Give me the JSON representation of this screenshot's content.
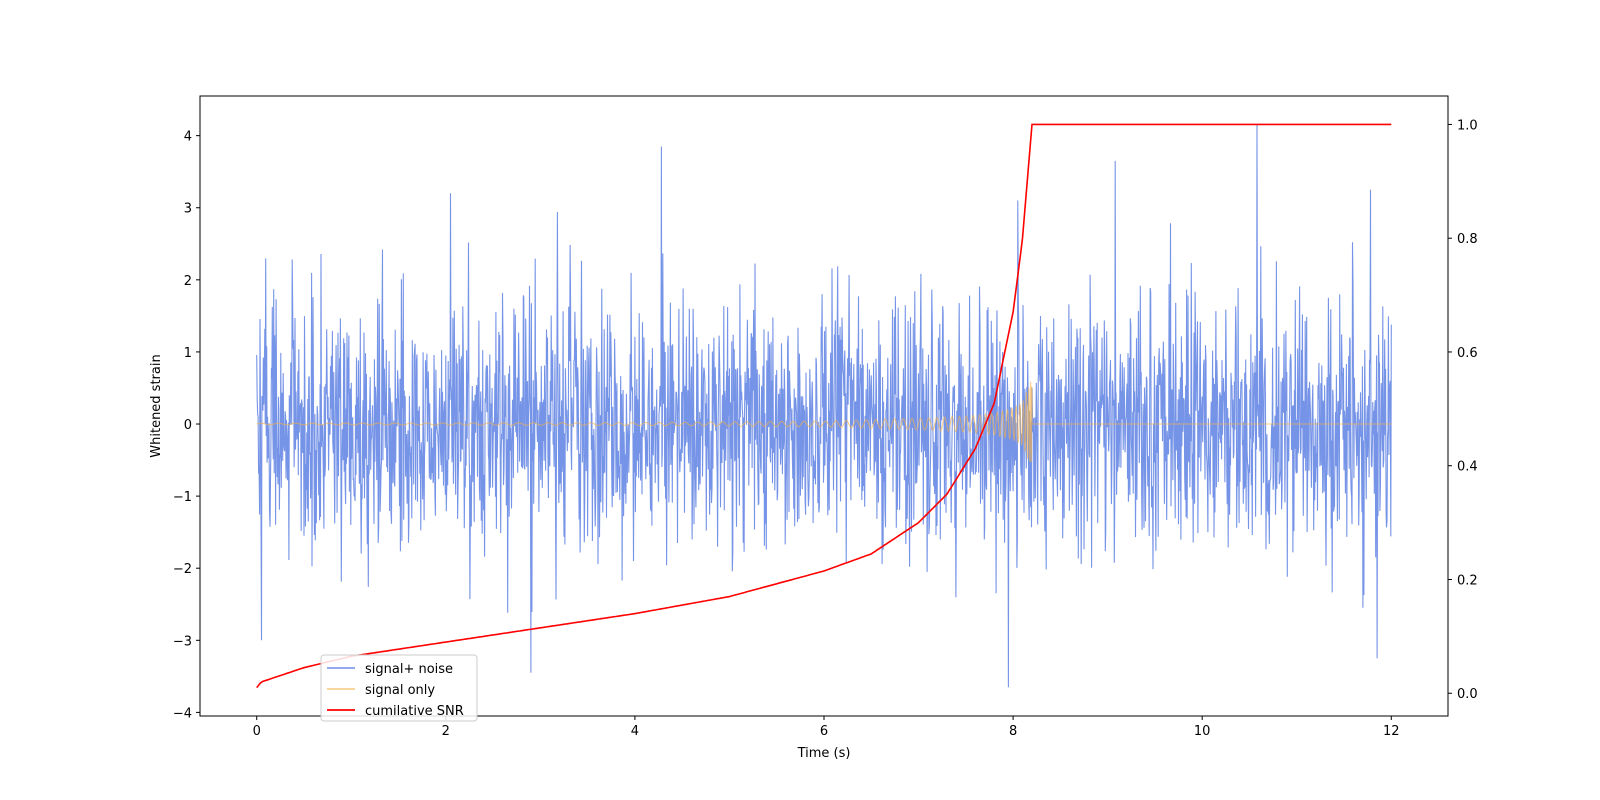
{
  "chart_data": {
    "type": "line",
    "title": "",
    "xlabel": "Time (s)",
    "ylabel": "Whitened strain",
    "y2label": "",
    "xlim": [
      -0.6,
      12.6
    ],
    "ylim": [
      -4.05,
      4.55
    ],
    "y2lim": [
      -0.04,
      1.05
    ],
    "x_ticks": [
      0,
      2,
      4,
      6,
      8,
      10,
      12
    ],
    "y_ticks": [
      -4,
      -3,
      -2,
      -1,
      0,
      1,
      2,
      3,
      4
    ],
    "y2_ticks": [
      0.0,
      0.2,
      0.4,
      0.6,
      0.8,
      1.0
    ],
    "grid": false,
    "legend_position": "lower-left",
    "series": [
      {
        "name": "signal+ noise",
        "axis": "left",
        "color": "#6f8ee6",
        "style": "noise",
        "x_range": [
          0,
          12
        ],
        "noise_std": 0.85,
        "notable_peaks": [
          [
            0.05,
            -3.0
          ],
          [
            2.05,
            3.2
          ],
          [
            2.9,
            -3.45
          ],
          [
            4.28,
            3.85
          ],
          [
            7.95,
            -3.65
          ],
          [
            8.05,
            3.1
          ],
          [
            9.08,
            3.65
          ],
          [
            10.58,
            4.15
          ],
          [
            11.78,
            3.25
          ],
          [
            11.85,
            -3.25
          ]
        ]
      },
      {
        "name": "signal only",
        "axis": "left",
        "color": "#f5b048",
        "style": "chirp",
        "x_range": [
          0,
          8.2
        ],
        "envelope": [
          [
            0,
            0.01
          ],
          [
            4,
            0.02
          ],
          [
            6,
            0.04
          ],
          [
            7,
            0.08
          ],
          [
            7.5,
            0.11
          ],
          [
            7.8,
            0.15
          ],
          [
            8.0,
            0.22
          ],
          [
            8.1,
            0.3
          ],
          [
            8.2,
            0.65
          ]
        ],
        "after_merger_value": 0
      },
      {
        "name": "cumilative SNR",
        "axis": "right",
        "color": "#ff0000",
        "style": "line",
        "x": [
          0,
          0.05,
          0.5,
          1,
          2,
          3,
          4,
          5,
          6,
          6.5,
          7,
          7.3,
          7.6,
          7.8,
          8.0,
          8.1,
          8.2,
          12
        ],
        "y": [
          0.01,
          0.02,
          0.045,
          0.065,
          0.09,
          0.115,
          0.14,
          0.17,
          0.215,
          0.245,
          0.3,
          0.35,
          0.43,
          0.51,
          0.67,
          0.8,
          1.0,
          1.0
        ]
      }
    ]
  }
}
